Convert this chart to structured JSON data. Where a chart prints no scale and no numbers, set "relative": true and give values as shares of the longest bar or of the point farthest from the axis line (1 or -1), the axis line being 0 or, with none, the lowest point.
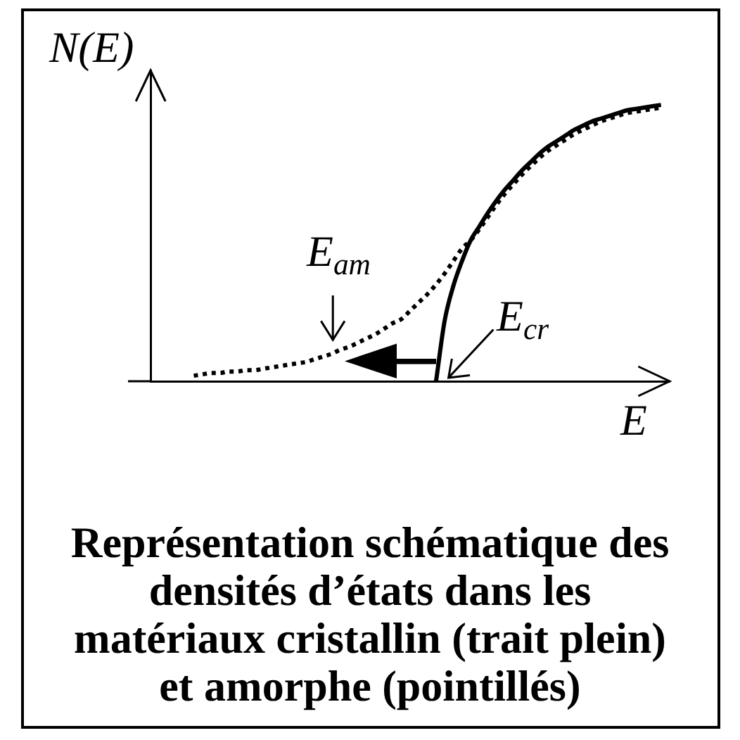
{
  "chart_data": {
    "type": "line",
    "title": "Représentation schématique des densités d’états dans les matériaux cristallin (trait plein) et amorphe (pointillés)",
    "xlabel": "E",
    "ylabel": "N(E)",
    "annotations": [
      "E$_{am}$",
      "E$_{cr}$"
    ],
    "relative": true,
    "marker": "none",
    "categories": [
      null,
      null,
      null,
      null,
      null,
      null,
      null,
      null,
      null,
      null,
      null,
      null,
      null,
      null,
      null,
      null,
      null,
      null,
      null,
      null,
      null,
      null,
      null,
      null,
      null,
      null,
      null,
      null,
      null,
      null,
      null,
      null,
      null,
      null,
      null,
      null,
      null,
      null,
      null,
      null,
      null,
      null,
      null,
      null,
      null,
      null,
      null,
      null,
      null,
      null,
      null,
      null,
      null,
      null,
      null,
      null,
      null,
      null,
      null,
      null,
      null
    ],
    "series": [
      {
        "color": "#000000",
        "line_style": "solid",
        "values": [
          null,
          null,
          null,
          null,
          null,
          null,
          null,
          null,
          null,
          null,
          null,
          null,
          null,
          null,
          null,
          null,
          null,
          null,
          null,
          null,
          null,
          null,
          null,
          null,
          null,
          null,
          null,
          null,
          null,
          null,
          null,
          null,
          null,
          0,
          0.22,
          0.345,
          0.435,
          0.51,
          0.56,
          0.61,
          0.655,
          0.695,
          0.73,
          0.765,
          0.795,
          0.825,
          0.85,
          0.87,
          0.89,
          0.91,
          0.925,
          0.94,
          0.95,
          0.96,
          0.97,
          0.98,
          0.985,
          0.99,
          0.995,
          1,
          null
        ]
      },
      {
        "color": "#000000",
        "line_style": "dotted",
        "values": [
          null,
          null,
          null,
          null,
          null,
          0.02,
          0.025,
          0.03,
          0.03,
          0.035,
          0.035,
          0.04,
          0.04,
          0.045,
          0.05,
          0.055,
          0.06,
          0.065,
          0.07,
          0.08,
          0.09,
          0.1,
          0.115,
          0.125,
          0.14,
          0.155,
          0.17,
          0.19,
          0.21,
          0.225,
          0.255,
          0.285,
          0.315,
          0.35,
          0.39,
          0.435,
          0.48,
          0.51,
          0.55,
          0.595,
          0.64,
          0.68,
          0.715,
          0.75,
          0.78,
          0.81,
          0.835,
          0.855,
          0.875,
          0.895,
          0.91,
          0.925,
          0.94,
          0.95,
          0.96,
          0.97,
          0.975,
          0.98,
          0.985,
          0.99,
          null
        ]
      }
    ]
  }
}
